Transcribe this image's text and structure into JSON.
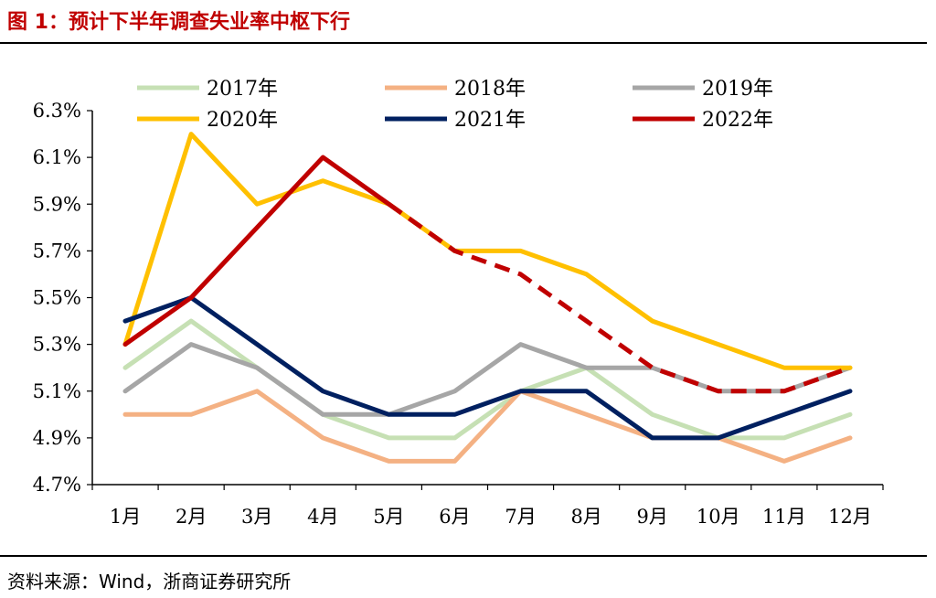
{
  "header": {
    "title": "图 1：预计下半年调查失业率中枢下行"
  },
  "footer": {
    "source": "资料来源：Wind，浙商证券研究所"
  },
  "chart_data": {
    "type": "line",
    "title": "",
    "xlabel": "",
    "ylabel": "",
    "categories": [
      "1月",
      "2月",
      "3月",
      "4月",
      "5月",
      "6月",
      "7月",
      "8月",
      "9月",
      "10月",
      "11月",
      "12月"
    ],
    "yticks": [
      "4.7%",
      "4.9%",
      "5.1%",
      "5.3%",
      "5.5%",
      "5.7%",
      "5.9%",
      "6.1%",
      "6.3%"
    ],
    "ylim": [
      4.7,
      6.3
    ],
    "grid": false,
    "legend_position": "top",
    "series": [
      {
        "name": "2017年",
        "color": "#c6e0b4",
        "values": [
          5.2,
          5.4,
          5.2,
          5.0,
          4.9,
          4.9,
          5.1,
          5.2,
          5.0,
          4.9,
          4.9,
          5.0
        ]
      },
      {
        "name": "2018年",
        "color": "#f4b183",
        "values": [
          5.0,
          5.0,
          5.1,
          4.9,
          4.8,
          4.8,
          5.1,
          5.0,
          4.9,
          4.9,
          4.8,
          4.9
        ]
      },
      {
        "name": "2019年",
        "color": "#a6a6a6",
        "values": [
          5.1,
          5.3,
          5.2,
          5.0,
          5.0,
          5.1,
          5.3,
          5.2,
          5.2,
          5.1,
          5.1,
          5.2
        ]
      },
      {
        "name": "2020年",
        "color": "#ffc000",
        "values": [
          5.3,
          6.2,
          5.9,
          6.0,
          5.9,
          5.7,
          5.7,
          5.6,
          5.4,
          5.3,
          5.2,
          5.2
        ]
      },
      {
        "name": "2021年",
        "color": "#002060",
        "values": [
          5.4,
          5.5,
          5.3,
          5.1,
          5.0,
          5.0,
          5.1,
          5.1,
          4.9,
          4.9,
          5.0,
          5.1
        ]
      },
      {
        "name": "2022年",
        "color": "#c00000",
        "values": [
          5.3,
          5.5,
          5.8,
          6.1,
          5.9,
          5.7,
          5.6,
          5.4,
          5.2,
          5.1,
          5.1,
          5.2
        ],
        "dashed_from_index": 4
      }
    ]
  }
}
